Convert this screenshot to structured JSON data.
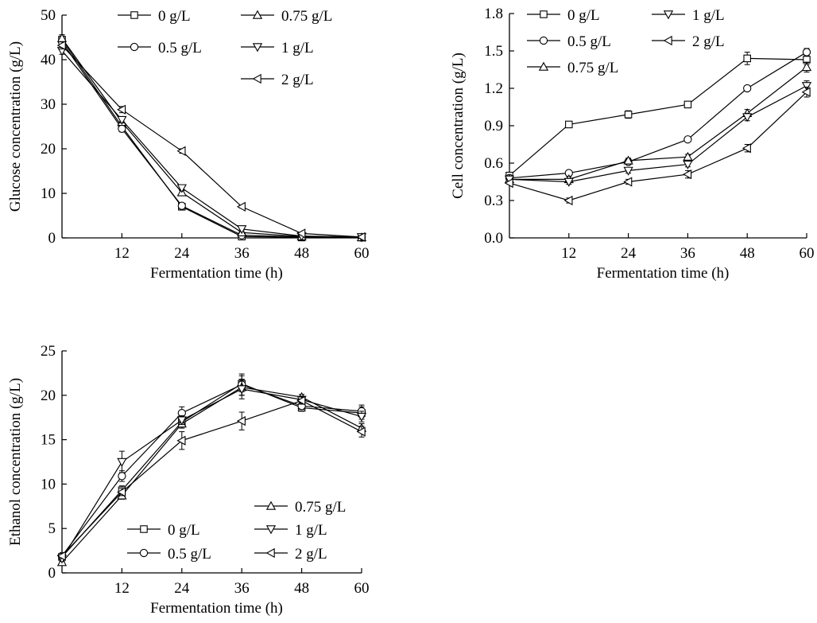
{
  "chart_data": [
    {
      "type": "line",
      "xlabel": "Fermentation time (h)",
      "ylabel": "Glucose concentration (g/L)",
      "xlim": [
        0,
        60
      ],
      "ylim": [
        0,
        50
      ],
      "xticks": [
        12,
        24,
        36,
        48,
        60
      ],
      "yticks": [
        0,
        10,
        20,
        30,
        40,
        50
      ],
      "x": [
        0,
        12,
        24,
        36,
        48,
        60
      ],
      "legend_position": "top-right",
      "series": [
        {
          "name": "0 g/L",
          "marker": "square",
          "values": [
            44.5,
            25.0,
            7.0,
            0.3,
            0.1,
            0.1
          ],
          "err": [
            0.8,
            0.7,
            0.4,
            0.2,
            0.1,
            0.1
          ]
        },
        {
          "name": "0.5 g/L",
          "marker": "circle",
          "values": [
            44.0,
            24.5,
            7.2,
            0.6,
            0.2,
            0.1
          ],
          "err": [
            0.8,
            0.7,
            0.4,
            0.2,
            0.1,
            0.1
          ]
        },
        {
          "name": "0.75 g/L",
          "marker": "triangle-up",
          "values": [
            44.8,
            26.0,
            10.2,
            1.2,
            0.3,
            0.1
          ],
          "err": [
            0.8,
            0.7,
            0.6,
            0.2,
            0.1,
            0.1
          ]
        },
        {
          "name": "1 g/L",
          "marker": "triangle-down",
          "values": [
            42.0,
            26.5,
            11.2,
            2.0,
            0.4,
            0.2
          ],
          "err": [
            0.8,
            0.7,
            0.6,
            0.2,
            0.1,
            0.1
          ]
        },
        {
          "name": "2 g/L",
          "marker": "triangle-left",
          "values": [
            43.2,
            28.8,
            19.5,
            7.0,
            1.0,
            0.2
          ],
          "err": [
            0.8,
            0.7,
            0.5,
            0.3,
            0.1,
            0.1
          ]
        }
      ]
    },
    {
      "type": "line",
      "xlabel": "Fermentation time (h)",
      "ylabel": "Cell concentration (g/L)",
      "xlim": [
        0,
        60
      ],
      "ylim": [
        0,
        1.8
      ],
      "xticks": [
        12,
        24,
        36,
        48,
        60
      ],
      "yticks": [
        0.0,
        0.3,
        0.6,
        0.9,
        1.2,
        1.5,
        1.8
      ],
      "x": [
        0,
        12,
        24,
        36,
        48,
        60
      ],
      "legend_position": "top-left",
      "series": [
        {
          "name": "0 g/L",
          "marker": "square",
          "values": [
            0.5,
            0.91,
            0.99,
            1.07,
            1.44,
            1.43
          ],
          "err": [
            0.01,
            0.02,
            0.03,
            0.02,
            0.05,
            0.04
          ]
        },
        {
          "name": "0.5 g/L",
          "marker": "circle",
          "values": [
            0.48,
            0.52,
            0.61,
            0.79,
            1.2,
            1.49
          ],
          "err": [
            0.01,
            0.02,
            0.02,
            0.02,
            0.02,
            0.03
          ]
        },
        {
          "name": "0.75 g/L",
          "marker": "triangle-up",
          "values": [
            0.47,
            0.47,
            0.62,
            0.65,
            1.0,
            1.37
          ],
          "err": [
            0.01,
            0.02,
            0.02,
            0.02,
            0.03,
            0.04
          ]
        },
        {
          "name": "1 g/L",
          "marker": "triangle-down",
          "values": [
            0.47,
            0.45,
            0.54,
            0.59,
            0.97,
            1.22
          ],
          "err": [
            0.01,
            0.02,
            0.02,
            0.02,
            0.03,
            0.04
          ]
        },
        {
          "name": "2 g/L",
          "marker": "triangle-left",
          "values": [
            0.44,
            0.3,
            0.45,
            0.51,
            0.72,
            1.17
          ],
          "err": [
            0.01,
            0.02,
            0.02,
            0.03,
            0.03,
            0.04
          ]
        }
      ]
    },
    {
      "type": "line",
      "xlabel": "Fermentation time (h)",
      "ylabel": "Ethanol concentration (g/L)",
      "xlim": [
        0,
        60
      ],
      "ylim": [
        0,
        25
      ],
      "xticks": [
        12,
        24,
        36,
        48,
        60
      ],
      "yticks": [
        0,
        5,
        10,
        15,
        20,
        25
      ],
      "x": [
        0,
        12,
        24,
        36,
        48,
        60
      ],
      "legend_position": "bottom-right",
      "series": [
        {
          "name": "0 g/L",
          "marker": "square",
          "values": [
            1.8,
            9.3,
            17.0,
            21.3,
            18.6,
            18.0
          ],
          "err": [
            0.3,
            0.5,
            0.5,
            0.9,
            0.4,
            0.7
          ]
        },
        {
          "name": "0.5 g/L",
          "marker": "circle",
          "values": [
            1.9,
            10.9,
            18.0,
            21.2,
            18.8,
            18.2
          ],
          "err": [
            0.3,
            0.6,
            0.7,
            1.2,
            0.4,
            0.7
          ]
        },
        {
          "name": "0.75 g/L",
          "marker": "triangle-up",
          "values": [
            1.2,
            8.7,
            16.8,
            20.9,
            19.8,
            16.3
          ],
          "err": [
            0.3,
            0.4,
            0.5,
            0.9,
            0.3,
            0.5
          ]
        },
        {
          "name": "1 g/L",
          "marker": "triangle-down",
          "values": [
            1.6,
            12.5,
            17.2,
            20.7,
            19.5,
            17.6
          ],
          "err": [
            0.3,
            1.2,
            0.5,
            1.1,
            0.4,
            0.6
          ]
        },
        {
          "name": "2 g/L",
          "marker": "triangle-left",
          "values": [
            1.9,
            9.1,
            14.9,
            17.1,
            19.4,
            15.9
          ],
          "err": [
            0.3,
            0.4,
            1.0,
            1.0,
            0.4,
            0.6
          ]
        }
      ]
    }
  ]
}
